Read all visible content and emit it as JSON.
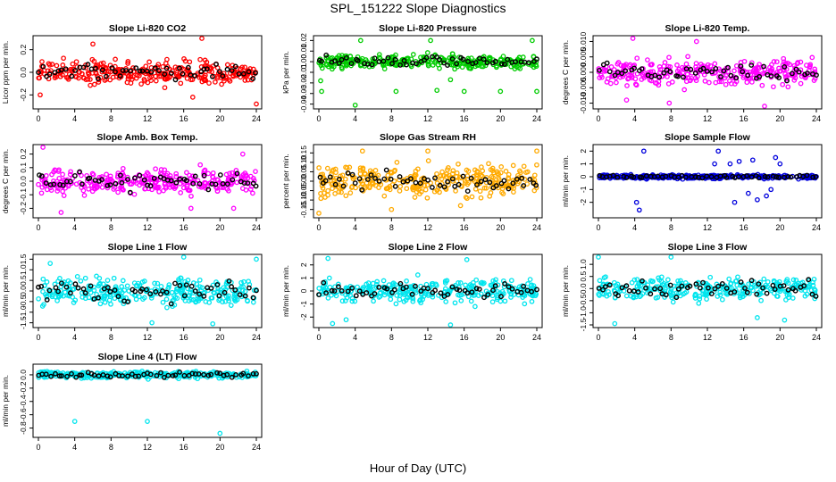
{
  "page_title": "SPL_151222  Slope Diagnostics",
  "x_axis_label": "Hour of Day (UTC)",
  "chart_data": [
    {
      "type": "scatter",
      "title": "Slope Li-820 CO2",
      "ylabel": "Licor ppm per min.",
      "color": "#ff0000",
      "xlim": [
        0,
        24
      ],
      "ylim": [
        -0.3,
        0.3
      ],
      "xticks": [
        0,
        4,
        8,
        12,
        16,
        20,
        24
      ],
      "yticks": [
        -0.2,
        0.0,
        0.2
      ],
      "ytick_labels": [
        "-0.2",
        "0.0",
        "0.2"
      ],
      "spread": 0.1,
      "outliers": [
        [
          18,
          0.3
        ],
        [
          24,
          -0.28
        ],
        [
          0.2,
          -0.2
        ],
        [
          6,
          0.25
        ],
        [
          17,
          -0.22
        ]
      ]
    },
    {
      "type": "scatter",
      "title": "Slope Li-820 Pressure",
      "ylabel": "kPa per min.",
      "color": "#00cc00",
      "xlim": [
        0,
        24
      ],
      "ylim": [
        -0.042,
        0.022
      ],
      "xticks": [
        0,
        4,
        8,
        12,
        16,
        20,
        24
      ],
      "yticks": [
        -0.04,
        -0.03,
        -0.02,
        -0.01,
        0.0,
        0.01,
        0.02
      ],
      "ytick_labels": [
        "-0.04",
        "-0.03",
        "-0.02",
        "-0.01",
        "0.00",
        "0.01",
        "0.02"
      ],
      "spread": 0.006,
      "outliers": [
        [
          0.3,
          -0.028
        ],
        [
          4,
          -0.041
        ],
        [
          8.5,
          -0.028
        ],
        [
          13,
          -0.027
        ],
        [
          16,
          -0.028
        ],
        [
          20,
          -0.028
        ],
        [
          24,
          -0.028
        ],
        [
          12.3,
          0.02
        ],
        [
          4.6,
          0.02
        ],
        [
          23.5,
          0.02
        ],
        [
          0.2,
          -0.018
        ],
        [
          14.5,
          -0.017
        ]
      ]
    },
    {
      "type": "scatter",
      "title": "Slope Li-820 Temp.",
      "ylabel": "degrees C per min.",
      "color": "#ff00ff",
      "xlim": [
        0,
        24
      ],
      "ylim": [
        -0.011,
        0.011
      ],
      "xticks": [
        0,
        4,
        8,
        12,
        16,
        20,
        24
      ],
      "yticks": [
        -0.01,
        -0.005,
        0.0,
        0.005,
        0.01
      ],
      "ytick_labels": [
        "-0.010",
        "-0.005",
        "0.000",
        "0.005",
        "0.010"
      ],
      "spread": 0.004,
      "outliers": [
        [
          3.8,
          0.011
        ],
        [
          10.8,
          0.01
        ],
        [
          7.8,
          -0.01
        ],
        [
          18.3,
          -0.011
        ],
        [
          3.1,
          -0.009
        ]
      ]
    },
    {
      "type": "scatter",
      "title": "Slope Amb. Box Temp.",
      "ylabel": "degrees C per min.",
      "color": "#ff00ff",
      "xlim": [
        0,
        24
      ],
      "ylim": [
        -0.25,
        0.25
      ],
      "xticks": [
        0,
        4,
        8,
        12,
        16,
        20,
        24
      ],
      "yticks": [
        -0.2,
        -0.1,
        0.0,
        0.1,
        0.2
      ],
      "ytick_labels": [
        "-0.2",
        "-0.1",
        "0.0",
        "0.1",
        "0.2"
      ],
      "spread": 0.09,
      "outliers": [
        [
          0.5,
          0.25
        ],
        [
          2.5,
          -0.23
        ],
        [
          16.8,
          -0.2
        ],
        [
          21.5,
          -0.2
        ],
        [
          22.5,
          0.2
        ]
      ]
    },
    {
      "type": "scatter",
      "title": "Slope Gas Stream RH",
      "ylabel": "percent per min.",
      "color": "#ffaa00",
      "xlim": [
        0,
        24
      ],
      "ylim": [
        -0.18,
        0.18
      ],
      "xticks": [
        0,
        4,
        8,
        12,
        16,
        20,
        24
      ],
      "yticks": [
        -0.15,
        -0.1,
        -0.05,
        0.0,
        0.05,
        0.1,
        0.15
      ],
      "ytick_labels": [
        "-0.15",
        "-0.10",
        "-0.05",
        "0.00",
        "0.05",
        "0.10",
        "0.15"
      ],
      "spread": 0.08,
      "outliers": [
        [
          0,
          -0.17
        ],
        [
          4.8,
          0.16
        ],
        [
          8,
          -0.15
        ],
        [
          24,
          0.16
        ],
        [
          12,
          0.16
        ],
        [
          8.6,
          0.1
        ],
        [
          15.6,
          -0.13
        ]
      ]
    },
    {
      "type": "scatter",
      "title": "Slope Sample Flow",
      "ylabel": "ml/min per min.",
      "color": "#0000dd",
      "xlim": [
        0,
        24
      ],
      "ylim": [
        -3.0,
        2.3
      ],
      "xticks": [
        0,
        4,
        8,
        12,
        16,
        20,
        24
      ],
      "yticks": [
        -2,
        -1,
        0,
        1,
        2
      ],
      "ytick_labels": [
        "-2",
        "-1",
        "0",
        "1",
        "2"
      ],
      "spread": 0.15,
      "outliers": [
        [
          4.5,
          -2.6
        ],
        [
          5,
          2.0
        ],
        [
          13.2,
          2.0
        ],
        [
          4.2,
          -2.0
        ],
        [
          15,
          -2.0
        ],
        [
          19.5,
          1.5
        ],
        [
          17,
          1.3
        ],
        [
          14.5,
          1.0
        ],
        [
          18.5,
          -1.5
        ],
        [
          16.5,
          -1.3
        ],
        [
          20,
          1.0
        ],
        [
          12.8,
          1.0
        ],
        [
          17.5,
          -1.8
        ],
        [
          15.5,
          1.2
        ],
        [
          19,
          -1.0
        ]
      ]
    },
    {
      "type": "scatter",
      "title": "Slope Line 1 Flow",
      "ylabel": "ml/min per min.",
      "color": "#00e5ee",
      "xlim": [
        0,
        24
      ],
      "ylim": [
        -1.6,
        1.6
      ],
      "xticks": [
        0,
        4,
        8,
        12,
        16,
        20,
        24
      ],
      "yticks": [
        -1.5,
        -1.0,
        -0.5,
        0.0,
        0.5,
        1.0,
        1.5
      ],
      "ytick_labels": [
        "-1.5",
        "-1.0",
        "-0.5",
        "0.0",
        "0.5",
        "1.0",
        "1.5"
      ],
      "spread": 0.6,
      "outliers": [
        [
          12.5,
          -1.5
        ],
        [
          19.2,
          -1.55
        ],
        [
          16,
          1.6
        ],
        [
          24,
          1.5
        ],
        [
          1.3,
          1.3
        ]
      ]
    },
    {
      "type": "scatter",
      "title": "Slope Line 2 Flow",
      "ylabel": "ml/min per min.",
      "color": "#00e5ee",
      "xlim": [
        0,
        24
      ],
      "ylim": [
        -2.6,
        2.6
      ],
      "xticks": [
        0,
        4,
        8,
        12,
        16,
        20,
        24
      ],
      "yticks": [
        -2,
        -1,
        0,
        1,
        2
      ],
      "ytick_labels": [
        "-2",
        "-1",
        "0",
        "1",
        "2"
      ],
      "spread": 0.9,
      "outliers": [
        [
          1,
          2.5
        ],
        [
          16.3,
          2.4
        ],
        [
          14.5,
          -2.6
        ],
        [
          1.5,
          -2.5
        ],
        [
          3,
          -2.2
        ]
      ]
    },
    {
      "type": "scatter",
      "title": "Slope Line 3 Flow",
      "ylabel": "ml/min per min.",
      "color": "#00e5ee",
      "xlim": [
        0,
        24
      ],
      "ylim": [
        -1.5,
        1.3
      ],
      "xticks": [
        0,
        4,
        8,
        12,
        16,
        20,
        24
      ],
      "yticks": [
        -1.5,
        -1.0,
        -0.5,
        0.0,
        0.5,
        1.0
      ],
      "ytick_labels": [
        "-1.5",
        "-1.0",
        "-0.5",
        "0.0",
        "0.5",
        "1.0"
      ],
      "spread": 0.45,
      "outliers": [
        [
          0,
          1.3
        ],
        [
          8,
          1.3
        ],
        [
          1.8,
          -1.45
        ],
        [
          17.5,
          -1.2
        ],
        [
          20.5,
          -1.3
        ]
      ]
    },
    {
      "type": "scatter",
      "title": "Slope Line 4 (LT) Flow",
      "ylabel": "ml/min per min.",
      "color": "#00e5ee",
      "xlim": [
        0,
        24
      ],
      "ylim": [
        -0.9,
        0.12
      ],
      "xticks": [
        0,
        4,
        8,
        12,
        16,
        20,
        24
      ],
      "yticks": [
        -0.8,
        -0.6,
        -0.4,
        -0.2,
        0.0
      ],
      "ytick_labels": [
        "-0.8",
        "-0.6",
        "-0.4",
        "-0.2",
        "0.0"
      ],
      "spread": 0.05,
      "outliers": [
        [
          4,
          -0.7
        ],
        [
          12,
          -0.7
        ],
        [
          20,
          -0.88
        ]
      ]
    }
  ]
}
